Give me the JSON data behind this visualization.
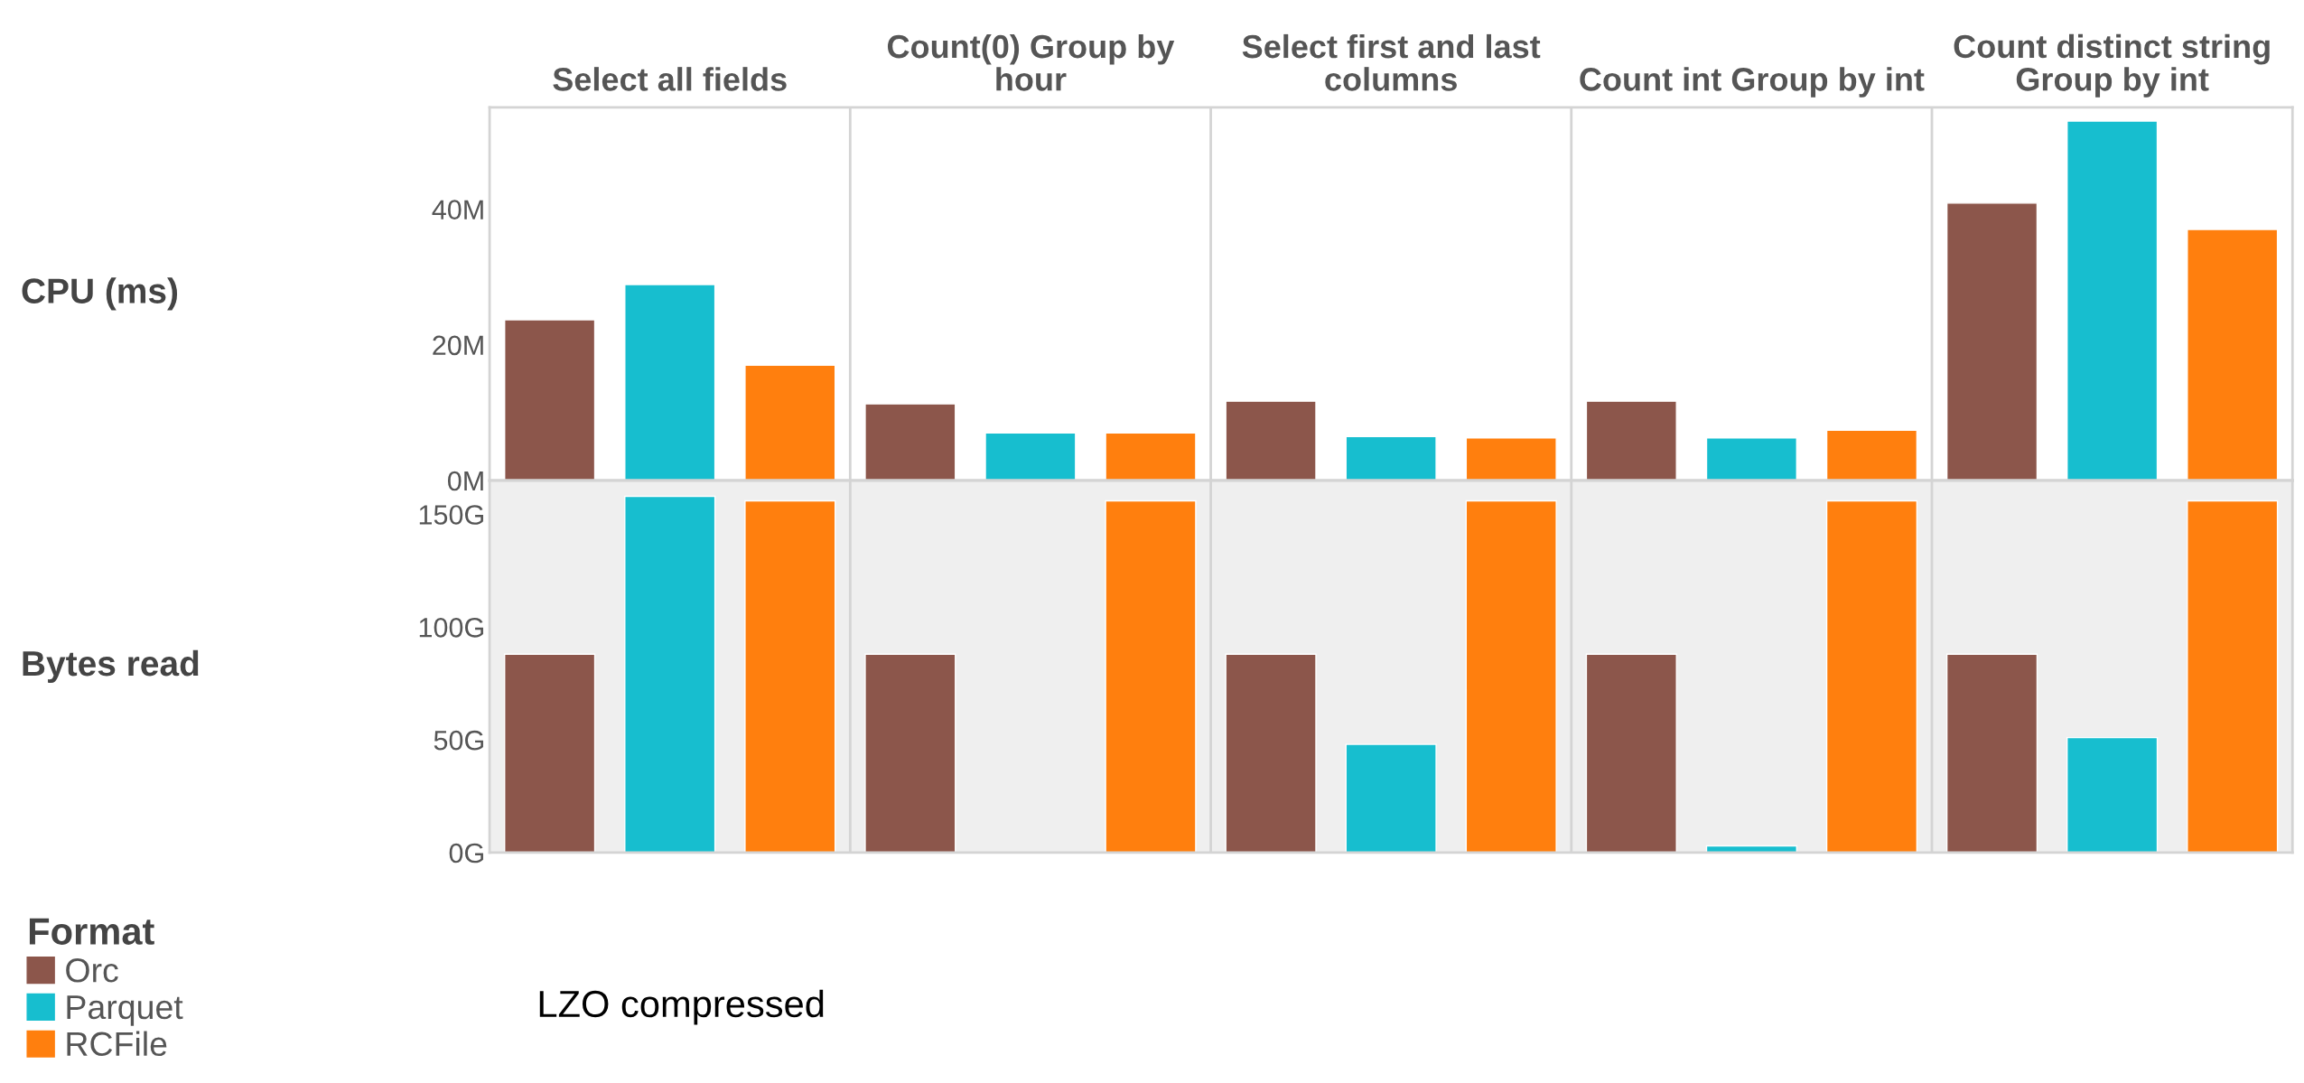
{
  "chart_data": [
    {
      "type": "bar",
      "ylabel": "CPU (ms)",
      "categories": [
        "Select all fields",
        "Count(0) Group by hour",
        "Select first and last columns",
        "Count int Group by int",
        "Count distinct string Group by int"
      ],
      "series": [
        {
          "name": "Orc",
          "color": "#8c564b",
          "values": [
            23.7,
            11.3,
            11.7,
            11.7,
            40.9
          ]
        },
        {
          "name": "Parquet",
          "color": "#17becf",
          "values": [
            28.9,
            7.0,
            6.5,
            6.3,
            53.0
          ]
        },
        {
          "name": "RCFile",
          "color": "#ff7f0e",
          "values": [
            17.0,
            7.0,
            6.3,
            7.4,
            37.0
          ]
        }
      ],
      "ylim": [
        0,
        55
      ],
      "yticks": [
        {
          "value": 0,
          "label": "0M"
        },
        {
          "value": 20,
          "label": "20M"
        },
        {
          "value": 40,
          "label": "40M"
        }
      ],
      "grid": "x",
      "legend": "bottom left",
      "legend_title": "Format",
      "annotations": [
        "LZO compressed"
      ]
    },
    {
      "type": "bar",
      "ylabel": "Bytes read",
      "categories": [
        null,
        null,
        null,
        null,
        null
      ],
      "series": [
        {
          "color": "#8c564b",
          "values": [
            88,
            88,
            88,
            88,
            88
          ]
        },
        {
          "color": "#17becf",
          "values": [
            158,
            null,
            48,
            3,
            51
          ]
        },
        {
          "color": "#ff7f0e",
          "values": [
            156,
            156,
            156,
            156,
            156
          ]
        }
      ],
      "ylim": [
        0,
        165
      ],
      "yticks": [
        {
          "value": 0,
          "label": "0G"
        },
        {
          "value": 50,
          "label": "50G"
        },
        {
          "value": 100,
          "label": "100G"
        },
        {
          "value": 150,
          "label": "150G"
        }
      ],
      "grid": "x",
      "tick_labels": "y"
    }
  ]
}
